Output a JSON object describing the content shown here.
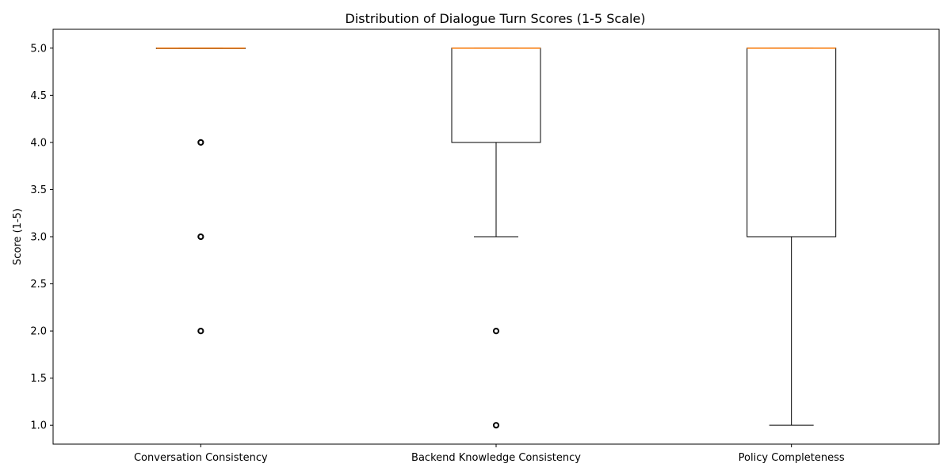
{
  "chart_data": {
    "type": "box",
    "title": "Distribution of Dialogue Turn Scores (1-5 Scale)",
    "xlabel": "",
    "ylabel": "Score (1-5)",
    "ylim": [
      0.8,
      5.2
    ],
    "yticks": [
      1.0,
      1.5,
      2.0,
      2.5,
      3.0,
      3.5,
      4.0,
      4.5,
      5.0
    ],
    "ytick_labels": [
      "1.0",
      "1.5",
      "2.0",
      "2.5",
      "3.0",
      "3.5",
      "4.0",
      "4.5",
      "5.0"
    ],
    "grid": false,
    "categories": [
      "Conversation Consistency",
      "Backend Knowledge Consistency",
      "Policy Completeness"
    ],
    "boxes": [
      {
        "category": "Conversation Consistency",
        "whisker_low": 5.0,
        "q1": 5.0,
        "median": 5.0,
        "q3": 5.0,
        "whisker_high": 5.0,
        "outliers": [
          4.0,
          3.0,
          2.0
        ]
      },
      {
        "category": "Backend Knowledge Consistency",
        "whisker_low": 3.0,
        "q1": 4.0,
        "median": 5.0,
        "q3": 5.0,
        "whisker_high": 5.0,
        "outliers": [
          2.0,
          1.0
        ]
      },
      {
        "category": "Policy Completeness",
        "whisker_low": 1.0,
        "q1": 3.0,
        "median": 5.0,
        "q3": 5.0,
        "whisker_high": 5.0,
        "outliers": []
      }
    ],
    "colors": {
      "box": "#000000",
      "median": "#ff7f0e",
      "outlier_edge": "#000000",
      "axes": "#000000"
    }
  }
}
